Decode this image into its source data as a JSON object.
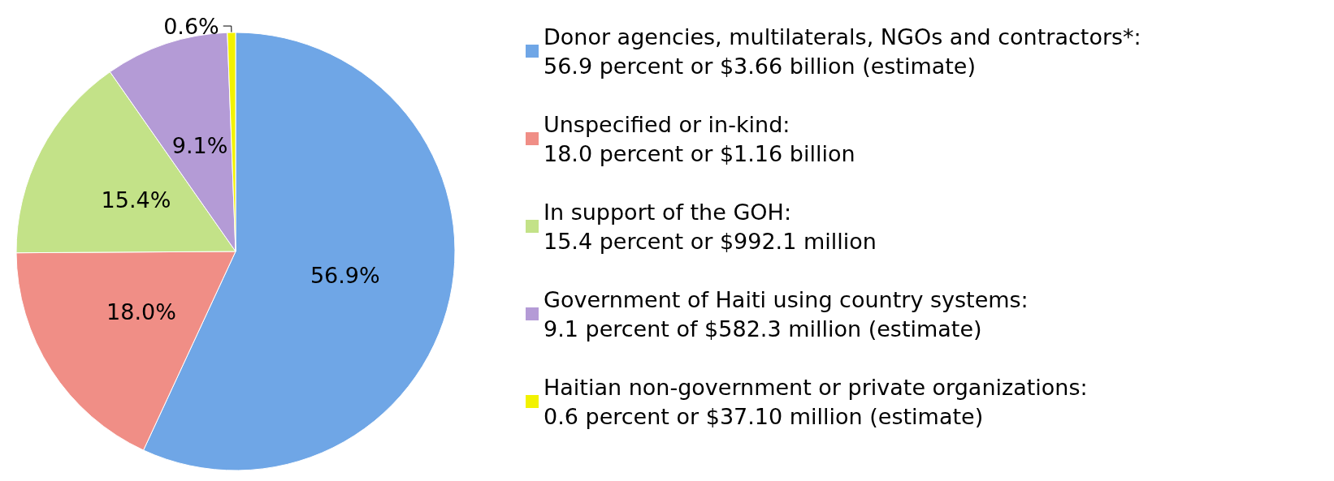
{
  "chart_data": {
    "type": "pie",
    "categories": [
      "Donor agencies, multilaterals, NGOs and contractors*:\n56.9 percent or $3.66 billion (estimate)",
      "Unspecified or in-kind:\n18.0 percent or $1.16 billion",
      "In support of the GOH:\n15.4 percent or $992.1 million",
      "Government of Haiti using country systems:\n9.1 percent of $582.3 million (estimate)",
      "Haitian non-government or private organizations:\n0.6 percent or $37.10 million (estimate)"
    ],
    "values": [
      56.9,
      18.0,
      15.4,
      9.1,
      0.6
    ],
    "colors": [
      "#6fa6e6",
      "#f08e86",
      "#c3e288",
      "#b49bd6",
      "#f2f200"
    ],
    "value_labels": [
      "56.9%",
      "18.0%",
      "15.4%",
      "9.1%",
      "0.6%"
    ],
    "legend": "right"
  }
}
